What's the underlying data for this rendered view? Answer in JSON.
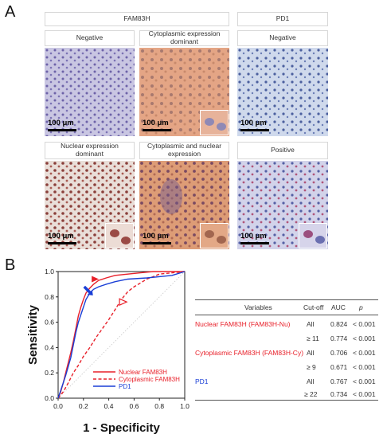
{
  "panel_a": {
    "letter": "A",
    "group_fam83h": "FAM83H",
    "group_pd1": "PD1",
    "images": [
      {
        "caption": "Negative",
        "scale": "100 μm"
      },
      {
        "caption": "Cytoplasmic expression dominant",
        "scale": "100 μm"
      },
      {
        "caption": "Negative",
        "scale": "100 μm"
      },
      {
        "caption": "Nuclear expression dominant",
        "scale": "100 μm"
      },
      {
        "caption": "Cytoplasmic and nuclear expression",
        "scale": "100 μm"
      },
      {
        "caption": "Positive",
        "scale": "100 μm"
      }
    ]
  },
  "panel_b": {
    "letter": "B",
    "colors": {
      "nuclear": "#e8202a",
      "cytoplasmic": "#e8202a",
      "pd1": "#1a3fd6"
    },
    "table": {
      "headers": [
        "Variables",
        "Cut-off",
        "AUC",
        "p"
      ],
      "rows": [
        {
          "variable": "Nuclear FAM83H (FAM83H-Nu)",
          "color": "red",
          "cutoff": "All",
          "auc": "0.824",
          "p": "< 0.001"
        },
        {
          "variable": "",
          "color": "red",
          "cutoff": "≥ 11",
          "auc": "0.774",
          "p": "< 0.001"
        },
        {
          "variable": "Cytoplasmic FAM83H (FAM83H-Cy)",
          "color": "red",
          "cutoff": "All",
          "auc": "0.706",
          "p": "< 0.001"
        },
        {
          "variable": "",
          "color": "red",
          "cutoff": "≥ 9",
          "auc": "0.671",
          "p": "< 0.001"
        },
        {
          "variable": "PD1",
          "color": "blue",
          "cutoff": "All",
          "auc": "0.767",
          "p": "< 0.001"
        },
        {
          "variable": "",
          "color": "blue",
          "cutoff": "≥ 22",
          "auc": "0.734",
          "p": "< 0.001"
        }
      ]
    }
  },
  "chart_data": {
    "type": "line",
    "title": "",
    "xlabel": "1 - Specificity",
    "ylabel": "Sensitivity",
    "xlim": [
      0,
      1
    ],
    "ylim": [
      0,
      1
    ],
    "xticks": [
      "0.0",
      "0.2",
      "0.4",
      "0.6",
      "0.8",
      "1.0"
    ],
    "yticks": [
      "0.0",
      "0.2",
      "0.4",
      "0.6",
      "0.8",
      "1.0"
    ],
    "grid": false,
    "legend_position": "bottom-right",
    "reference_line": "diagonal",
    "series": [
      {
        "name": "Nuclear FAM83H",
        "style": "solid",
        "color": "#e8202a",
        "x": [
          0,
          0.02,
          0.04,
          0.06,
          0.08,
          0.1,
          0.12,
          0.14,
          0.16,
          0.18,
          0.2,
          0.22,
          0.25,
          0.28,
          0.32,
          0.38,
          0.45,
          0.55,
          0.65,
          0.75,
          0.85,
          1.0
        ],
        "y": [
          0,
          0.05,
          0.12,
          0.2,
          0.28,
          0.36,
          0.45,
          0.55,
          0.65,
          0.72,
          0.78,
          0.83,
          0.87,
          0.9,
          0.93,
          0.95,
          0.97,
          0.98,
          0.99,
          1.0,
          1.0,
          1.0
        ]
      },
      {
        "name": "Cytoplasmic FAM83H",
        "style": "dashed",
        "color": "#e8202a",
        "x": [
          0,
          0.04,
          0.08,
          0.12,
          0.16,
          0.2,
          0.25,
          0.3,
          0.35,
          0.4,
          0.45,
          0.5,
          0.55,
          0.6,
          0.65,
          0.7,
          0.75,
          0.8,
          0.9,
          1.0
        ],
        "y": [
          0,
          0.05,
          0.12,
          0.2,
          0.26,
          0.33,
          0.4,
          0.48,
          0.55,
          0.62,
          0.7,
          0.78,
          0.84,
          0.88,
          0.91,
          0.94,
          0.96,
          0.98,
          0.99,
          1.0
        ],
        "annotation": "open-triangle-marker"
      },
      {
        "name": "PD1",
        "style": "solid",
        "color": "#1a3fd6",
        "x": [
          0,
          0.02,
          0.04,
          0.06,
          0.08,
          0.1,
          0.12,
          0.14,
          0.16,
          0.18,
          0.2,
          0.22,
          0.25,
          0.28,
          0.32,
          0.38,
          0.45,
          0.55,
          0.7,
          0.8,
          0.9,
          1.0
        ],
        "y": [
          0,
          0.06,
          0.12,
          0.18,
          0.25,
          0.32,
          0.42,
          0.52,
          0.6,
          0.66,
          0.72,
          0.78,
          0.83,
          0.86,
          0.88,
          0.9,
          0.92,
          0.94,
          0.95,
          0.96,
          0.97,
          1.0
        ]
      }
    ],
    "markers": [
      {
        "series": "Nuclear FAM83H",
        "shape": "filled-triangle",
        "color": "#e8202a",
        "x": 0.29,
        "y": 0.94
      },
      {
        "series": "Cytoplasmic FAM83H",
        "shape": "open-triangle",
        "color": "#e8202a",
        "x": 0.51,
        "y": 0.76
      },
      {
        "series": "PD1",
        "shape": "arrow",
        "color": "#1a3fd6",
        "x": 0.25,
        "y": 0.83
      }
    ]
  }
}
